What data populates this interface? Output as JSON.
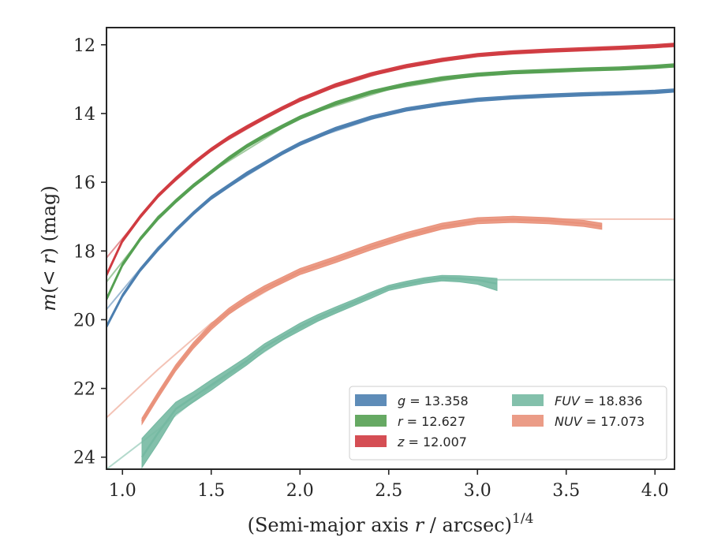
{
  "chart_data": {
    "type": "line",
    "xlabel": "(Semi-major axis r / arcsec)^1/4",
    "ylabel": "m(< r) (mag)",
    "xlim": [
      0.91,
      4.11
    ],
    "ylim": [
      24.35,
      11.5
    ],
    "y_inverted": true,
    "x_ticks": [
      "1.0",
      "1.5",
      "2.0",
      "2.5",
      "3.0",
      "3.5",
      "4.0"
    ],
    "y_ticks": [
      "12",
      "14",
      "16",
      "18",
      "20",
      "22",
      "24"
    ],
    "legend_position": "lower-right",
    "legend": [
      {
        "band": "g",
        "value": "13.358",
        "color": "#4c7fb0"
      },
      {
        "band": "r",
        "value": "12.627",
        "color": "#55a052"
      },
      {
        "band": "z",
        "value": "12.007",
        "color": "#d03b41"
      },
      {
        "band": "FUV",
        "value": "18.836",
        "color": "#75b9a2"
      },
      {
        "band": "NUV",
        "value": "17.073",
        "color": "#e9917a"
      }
    ],
    "series": [
      {
        "name": "g = 13.358",
        "band": "g",
        "color": "#4c7fb0",
        "data_x": [
          0.91,
          1.0,
          1.1,
          1.2,
          1.3,
          1.4,
          1.5,
          1.6,
          1.7,
          1.8,
          1.9,
          2.0,
          2.2,
          2.4,
          2.6,
          2.8,
          3.0,
          3.2,
          3.4,
          3.6,
          3.8,
          4.0,
          4.11
        ],
        "data_y": [
          20.2,
          19.3,
          18.55,
          17.95,
          17.4,
          16.9,
          16.45,
          16.1,
          15.75,
          15.45,
          15.15,
          14.88,
          14.45,
          14.12,
          13.88,
          13.72,
          13.6,
          13.53,
          13.48,
          13.44,
          13.41,
          13.37,
          13.33
        ],
        "band_halfwidth": 0.05,
        "model_x": [
          0.91,
          1.2,
          1.5,
          2.0,
          2.5,
          3.0,
          3.5,
          4.11
        ],
        "model_y": [
          19.7,
          17.9,
          16.45,
          14.85,
          14.0,
          13.6,
          13.46,
          13.36
        ]
      },
      {
        "name": "r = 12.627",
        "band": "r",
        "color": "#55a052",
        "data_x": [
          0.91,
          1.0,
          1.1,
          1.2,
          1.3,
          1.4,
          1.5,
          1.6,
          1.7,
          1.8,
          1.9,
          2.0,
          2.2,
          2.4,
          2.6,
          2.8,
          3.0,
          3.2,
          3.4,
          3.6,
          3.8,
          4.0,
          4.11
        ],
        "data_y": [
          19.4,
          18.4,
          17.65,
          17.05,
          16.55,
          16.1,
          15.7,
          15.3,
          14.95,
          14.65,
          14.38,
          14.12,
          13.7,
          13.38,
          13.15,
          12.98,
          12.87,
          12.8,
          12.76,
          12.72,
          12.69,
          12.64,
          12.6
        ],
        "band_halfwidth": 0.05,
        "model_x": [
          0.91,
          1.2,
          1.5,
          2.0,
          2.5,
          3.0,
          3.5,
          4.11
        ],
        "model_y": [
          18.9,
          17.0,
          15.7,
          14.1,
          13.3,
          12.88,
          12.74,
          12.64
        ]
      },
      {
        "name": "z = 12.007",
        "band": "z",
        "color": "#d03b41",
        "data_x": [
          0.91,
          1.0,
          1.1,
          1.2,
          1.3,
          1.4,
          1.5,
          1.6,
          1.7,
          1.8,
          1.9,
          2.0,
          2.2,
          2.4,
          2.6,
          2.8,
          3.0,
          3.2,
          3.4,
          3.6,
          3.8,
          4.0,
          4.11
        ],
        "data_y": [
          18.7,
          17.7,
          17.0,
          16.4,
          15.9,
          15.45,
          15.05,
          14.7,
          14.4,
          14.12,
          13.85,
          13.6,
          13.18,
          12.86,
          12.62,
          12.44,
          12.3,
          12.22,
          12.17,
          12.13,
          12.09,
          12.04,
          12.0
        ],
        "band_halfwidth": 0.05,
        "model_x": [
          0.91,
          1.2,
          1.5,
          2.0,
          2.5,
          3.0,
          3.5,
          4.11
        ],
        "model_y": [
          18.2,
          16.4,
          15.05,
          13.55,
          12.75,
          12.3,
          12.16,
          12.05
        ]
      },
      {
        "name": "FUV = 18.836",
        "band": "FUV",
        "color": "#75b9a2",
        "data_x": [
          1.11,
          1.2,
          1.3,
          1.4,
          1.5,
          1.6,
          1.7,
          1.8,
          1.9,
          2.0,
          2.1,
          2.2,
          2.3,
          2.4,
          2.5,
          2.6,
          2.7,
          2.8,
          2.9,
          3.0,
          3.11
        ],
        "data_y": [
          24.0,
          23.3,
          22.6,
          22.25,
          21.9,
          21.55,
          21.2,
          20.8,
          20.5,
          20.2,
          19.95,
          19.72,
          19.5,
          19.28,
          19.07,
          18.95,
          18.85,
          18.78,
          18.8,
          18.85,
          18.95
        ],
        "band_lower": [
          23.45,
          22.95,
          22.4,
          22.1,
          21.75,
          21.42,
          21.08,
          20.7,
          20.4,
          20.1,
          19.85,
          19.63,
          19.42,
          19.2,
          19.0,
          18.88,
          18.78,
          18.71,
          18.72,
          18.75,
          18.8
        ],
        "band_upper": [
          24.3,
          23.6,
          22.75,
          22.4,
          22.05,
          21.68,
          21.32,
          20.92,
          20.6,
          20.32,
          20.05,
          19.82,
          19.6,
          19.38,
          19.15,
          19.04,
          18.94,
          18.87,
          18.9,
          18.97,
          19.15
        ],
        "model_x": [
          0.91,
          1.2,
          1.5,
          2.0,
          2.5,
          2.75,
          3.0,
          4.11
        ],
        "model_y": [
          24.35,
          23.2,
          21.95,
          20.25,
          19.08,
          18.85,
          18.836,
          18.836
        ]
      },
      {
        "name": "NUV = 17.073",
        "band": "NUV",
        "color": "#e9917a",
        "data_x": [
          1.11,
          1.2,
          1.3,
          1.4,
          1.5,
          1.6,
          1.7,
          1.8,
          1.9,
          2.0,
          2.2,
          2.4,
          2.6,
          2.8,
          3.0,
          3.2,
          3.4,
          3.6,
          3.7
        ],
        "data_y": [
          22.95,
          22.2,
          21.4,
          20.75,
          20.2,
          19.75,
          19.4,
          19.1,
          18.85,
          18.6,
          18.25,
          17.88,
          17.55,
          17.28,
          17.12,
          17.08,
          17.12,
          17.2,
          17.28
        ],
        "band_halfwidth": 0.09,
        "model_x": [
          0.91,
          1.2,
          1.5,
          2.0,
          2.5,
          3.0,
          3.2,
          4.11
        ],
        "model_y": [
          22.85,
          21.45,
          20.1,
          18.6,
          17.7,
          17.12,
          17.073,
          17.073
        ]
      }
    ]
  }
}
